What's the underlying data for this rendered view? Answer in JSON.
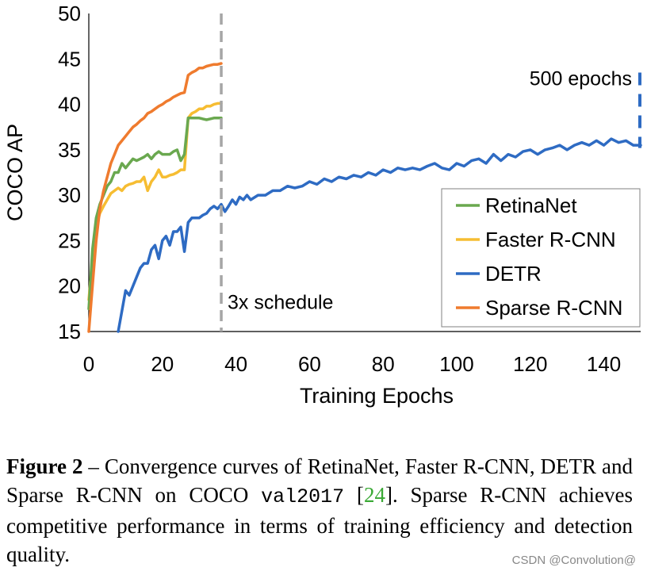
{
  "chart_data": {
    "type": "line",
    "xlabel": "Training Epochs",
    "ylabel": "COCO AP",
    "xlim": [
      0,
      150
    ],
    "ylim": [
      15,
      50
    ],
    "xticks": [
      "0",
      "20",
      "40",
      "60",
      "80",
      "100",
      "120",
      "140"
    ],
    "yticks": [
      "15",
      "20",
      "25",
      "30",
      "35",
      "40",
      "45",
      "50"
    ],
    "grid": false,
    "legend_position": "bottom-right",
    "annotations": {
      "schedule_label": "3x schedule",
      "schedule_x": 36,
      "epochs_label": "500 epochs",
      "epochs_ap_range": [
        35.2,
        43.5
      ]
    },
    "series": [
      {
        "name": "RetinaNet",
        "color": "#6aa84f",
        "x": [
          0,
          1,
          2,
          3,
          4,
          5,
          6,
          7,
          8,
          9,
          10,
          11,
          12,
          13,
          14,
          15,
          16,
          17,
          18,
          19,
          20,
          21,
          22,
          23,
          24,
          25,
          26,
          27,
          28,
          29,
          30,
          31,
          32,
          33,
          34,
          35,
          36
        ],
        "y": [
          17.5,
          24,
          27.5,
          29,
          30,
          31,
          31.5,
          32.5,
          32.5,
          33.5,
          33,
          33.5,
          34,
          33.8,
          34,
          34.2,
          34.5,
          34,
          34.5,
          34.8,
          34.5,
          34.5,
          34.5,
          34.8,
          35,
          33.8,
          34.5,
          38.5,
          38.5,
          38.5,
          38.5,
          38.4,
          38.3,
          38.4,
          38.5,
          38.5,
          38.5
        ]
      },
      {
        "name": "Faster R-CNN",
        "color": "#f6bd32",
        "x": [
          0,
          1,
          2,
          3,
          4,
          5,
          6,
          7,
          8,
          9,
          10,
          11,
          12,
          13,
          14,
          15,
          16,
          17,
          18,
          19,
          20,
          21,
          22,
          23,
          24,
          25,
          26,
          27,
          28,
          29,
          30,
          31,
          32,
          33,
          34,
          35,
          36
        ],
        "y": [
          18.5,
          23,
          26.5,
          28,
          28.8,
          29.5,
          30.2,
          30.5,
          30.8,
          30.5,
          31,
          31.2,
          31.3,
          31.5,
          31.5,
          32,
          30.5,
          31.5,
          32,
          32.8,
          32,
          32,
          32.2,
          32.3,
          32.5,
          32.8,
          32.8,
          38.5,
          39,
          39.2,
          39.5,
          39.5,
          39.8,
          39.8,
          40,
          40.1,
          40.1
        ]
      },
      {
        "name": "DETR",
        "color": "#2e6bc3",
        "x": [
          8,
          10,
          11,
          12,
          13,
          14,
          15,
          16,
          17,
          18,
          19,
          20,
          21,
          22,
          23,
          24,
          25,
          26,
          27,
          28,
          29,
          30,
          31,
          32,
          33,
          34,
          35,
          36,
          37,
          38,
          39,
          40,
          41,
          42,
          43,
          44,
          46,
          48,
          50,
          52,
          54,
          56,
          58,
          60,
          62,
          64,
          66,
          68,
          70,
          72,
          74,
          76,
          78,
          80,
          82,
          84,
          86,
          88,
          90,
          92,
          94,
          96,
          98,
          100,
          102,
          104,
          106,
          108,
          110,
          112,
          114,
          116,
          118,
          120,
          122,
          124,
          126,
          128,
          130,
          132,
          134,
          136,
          138,
          140,
          142,
          144,
          146,
          148,
          150
        ],
        "y": [
          15,
          19.5,
          19,
          20,
          21,
          22,
          22.5,
          22.5,
          24,
          24.5,
          23,
          25,
          25.5,
          24.5,
          26,
          26,
          26.5,
          23.8,
          27,
          27.5,
          27.5,
          27.5,
          27.8,
          28,
          28.5,
          28.8,
          28.5,
          29,
          28.2,
          28.8,
          29.5,
          29,
          29.8,
          29.5,
          30,
          29.5,
          30,
          30,
          30.5,
          30.5,
          31,
          30.8,
          31,
          31.5,
          31.2,
          31.8,
          31.5,
          32,
          31.8,
          32.2,
          32,
          32.5,
          32.2,
          32.8,
          32.5,
          33,
          32.8,
          33,
          32.8,
          33.2,
          33.5,
          33,
          32.8,
          33.5,
          33.2,
          33.8,
          34,
          33.5,
          34.5,
          33.8,
          34.5,
          34.2,
          34.8,
          35,
          34.5,
          35,
          35.2,
          35.5,
          35,
          35.5,
          35.8,
          35.5,
          36,
          35.5,
          36.2,
          35.8,
          36,
          35.5,
          35.5
        ]
      },
      {
        "name": "Sparse R-CNN",
        "color": "#ef7b2e",
        "x": [
          0,
          1,
          2,
          3,
          4,
          5,
          6,
          7,
          8,
          9,
          10,
          11,
          12,
          13,
          14,
          15,
          16,
          17,
          18,
          19,
          20,
          21,
          22,
          23,
          24,
          25,
          26,
          27,
          28,
          29,
          30,
          31,
          32,
          33,
          34,
          35,
          36
        ],
        "y": [
          15,
          20,
          25,
          28.5,
          30.5,
          32,
          33.5,
          34.5,
          35.5,
          36,
          36.5,
          37,
          37.5,
          37.8,
          38.2,
          38.5,
          39,
          39.2,
          39.5,
          39.8,
          40,
          40.3,
          40.5,
          40.8,
          41,
          41.2,
          41.3,
          43.2,
          43.5,
          43.7,
          44,
          44,
          44.2,
          44.3,
          44.4,
          44.4,
          44.5
        ]
      }
    ]
  },
  "caption": {
    "label": "Figure 2",
    "dash": " – ",
    "text_part1": "Convergence curves of RetinaNet, Faster R-CNN, DETR and Sparse R-CNN on COCO ",
    "dataset": "val2017",
    "citation_open": " [",
    "citation": "24",
    "citation_close": "].",
    "text_part2": "  Sparse R-CNN achieves competitive performance in terms of training efficiency and detection quality."
  },
  "watermark": "CSDN @Convolution@"
}
